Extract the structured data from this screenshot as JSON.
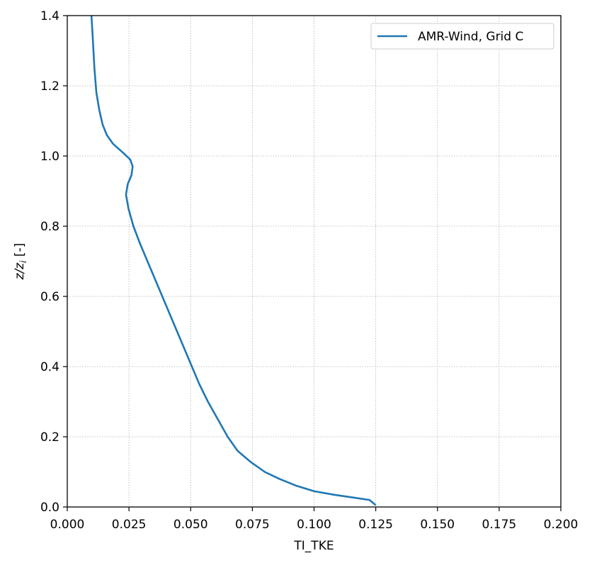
{
  "chart_data": {
    "type": "line",
    "xlabel": "TI_TKE",
    "ylabel": "z/z",
    "ylabel_subscript": "i",
    "ylabel_suffix": " [-]",
    "xlim": [
      0.0,
      0.2
    ],
    "ylim": [
      0.0,
      1.4
    ],
    "x_ticks": [
      "0.000",
      "0.025",
      "0.050",
      "0.075",
      "0.100",
      "0.125",
      "0.150",
      "0.175",
      "0.200"
    ],
    "y_ticks": [
      "0.0",
      "0.2",
      "0.4",
      "0.6",
      "0.8",
      "1.0",
      "1.2",
      "1.4"
    ],
    "grid": true,
    "legend_position": "top-right",
    "series": [
      {
        "name": "AMR-Wind, Grid C",
        "color": "#1f77b4",
        "points": [
          [
            0.125,
            0.005
          ],
          [
            0.1225,
            0.02
          ],
          [
            0.108,
            0.035
          ],
          [
            0.1,
            0.045
          ],
          [
            0.093,
            0.06
          ],
          [
            0.086,
            0.08
          ],
          [
            0.08,
            0.1
          ],
          [
            0.074,
            0.13
          ],
          [
            0.069,
            0.16
          ],
          [
            0.065,
            0.2
          ],
          [
            0.061,
            0.25
          ],
          [
            0.057,
            0.3
          ],
          [
            0.0535,
            0.35
          ],
          [
            0.0505,
            0.4
          ],
          [
            0.0475,
            0.45
          ],
          [
            0.0445,
            0.5
          ],
          [
            0.0415,
            0.55
          ],
          [
            0.0385,
            0.6
          ],
          [
            0.0355,
            0.65
          ],
          [
            0.0325,
            0.7
          ],
          [
            0.0295,
            0.75
          ],
          [
            0.0268,
            0.8
          ],
          [
            0.0248,
            0.85
          ],
          [
            0.0238,
            0.89
          ],
          [
            0.0245,
            0.92
          ],
          [
            0.026,
            0.945
          ],
          [
            0.0265,
            0.97
          ],
          [
            0.0255,
            0.99
          ],
          [
            0.0225,
            1.01
          ],
          [
            0.0185,
            1.035
          ],
          [
            0.016,
            1.06
          ],
          [
            0.0143,
            1.09
          ],
          [
            0.013,
            1.13
          ],
          [
            0.0118,
            1.18
          ],
          [
            0.011,
            1.25
          ],
          [
            0.0103,
            1.34
          ],
          [
            0.0098,
            1.4
          ]
        ]
      }
    ]
  }
}
